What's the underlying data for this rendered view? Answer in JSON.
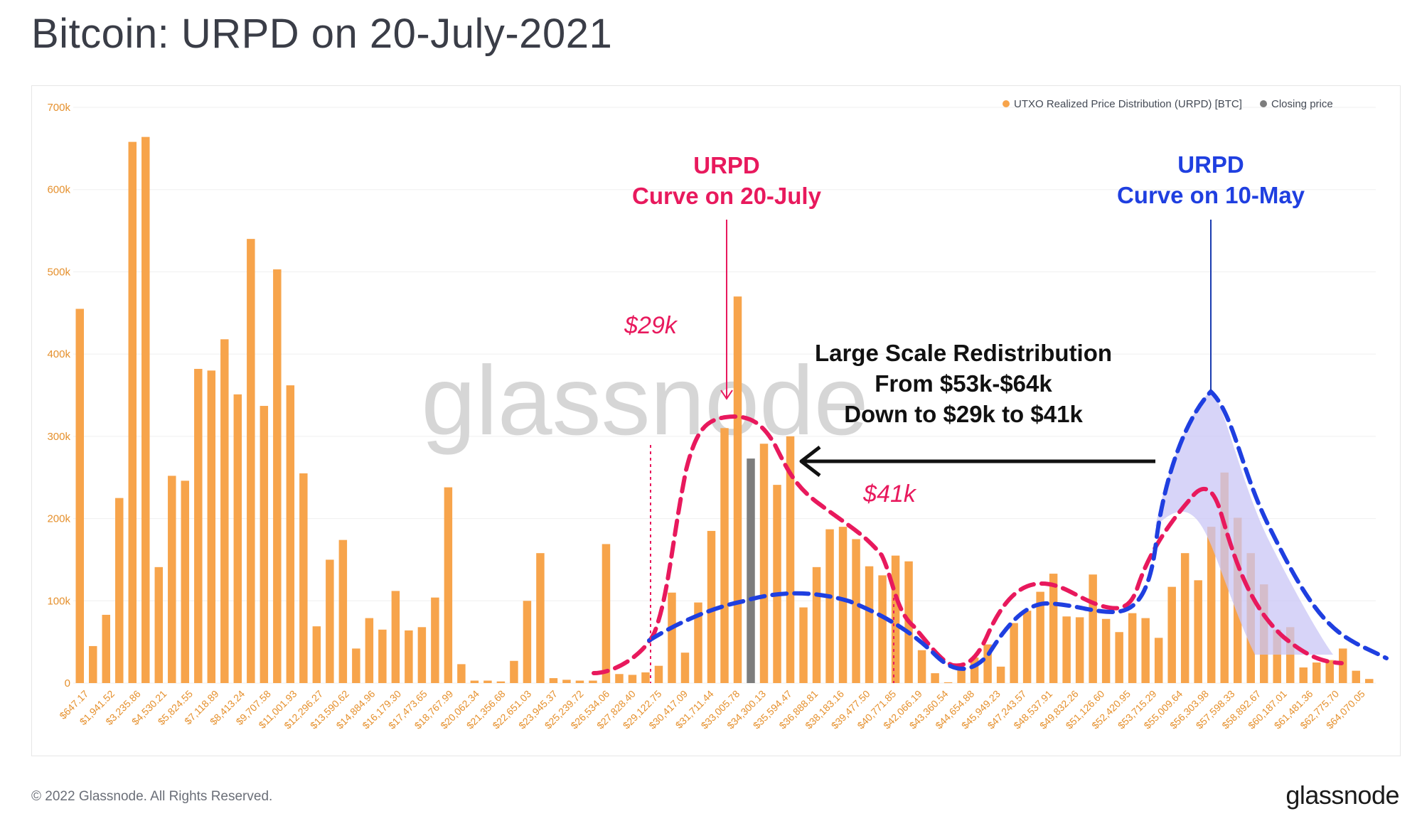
{
  "title": "Bitcoin: URPD on 20-July-2021",
  "footer": "© 2022 Glassnode. All Rights Reserved.",
  "brand": "glassnode",
  "watermark": "glassnode",
  "colors": {
    "bar": "#f7a44b",
    "closing": "#7d7d7d",
    "curve_july": "#e8195d",
    "curve_may": "#1f3fe0",
    "may_fill": "#c9c6f5",
    "tick": "#e5902d",
    "grid": "#efefef"
  },
  "legend": {
    "urpd": "UTXO Realized Price Distribution (URPD) [BTC]",
    "closing": "Closing price"
  },
  "annotations": {
    "july_line1": "URPD",
    "july_line2": "Curve on 20-July",
    "may_line1": "URPD",
    "may_line2": "Curve on 10-May",
    "low_marker": "$29k",
    "high_marker": "$41k",
    "redistribution_line1": "Large Scale Redistribution",
    "redistribution_line2": "From $53k-$64k",
    "redistribution_line3": "Down to $29k to $41k"
  },
  "chart_data": {
    "type": "bar",
    "title": "Bitcoin: URPD on 20-July-2021",
    "ylim": [
      0,
      700000
    ],
    "yticks": [
      "0",
      "100k",
      "200k",
      "300k",
      "400k",
      "500k",
      "600k",
      "700k"
    ],
    "grid": true,
    "legend_position": "top-right",
    "xtick_labels": [
      "$647.17",
      "$1,941.52",
      "$3,235.86",
      "$4,530.21",
      "$5,824.55",
      "$7,118.89",
      "$8,413.24",
      "$9,707.58",
      "$11,001.93",
      "$12,296.27",
      "$13,590.62",
      "$14,884.96",
      "$16,179.30",
      "$17,473.65",
      "$18,767.99",
      "$20,062.34",
      "$21,356.68",
      "$22,651.03",
      "$23,945.37",
      "$25,239.72",
      "$26,534.06",
      "$27,828.40",
      "$29,122.75",
      "$30,417.09",
      "$31,711.44",
      "$33,005.78",
      "$34,300.13",
      "$35,594.47",
      "$36,888.81",
      "$38,183.16",
      "$39,477.50",
      "$40,771.85",
      "$42,066.19",
      "$43,360.54",
      "$44,654.88",
      "$45,949.23",
      "$47,243.57",
      "$48,537.91",
      "$49,832.26",
      "$51,126.60",
      "$52,420.95",
      "$53,715.29",
      "$55,009.64",
      "$56,303.98",
      "$57,598.33",
      "$58,892.67",
      "$60,187.01",
      "$61,481.36",
      "$62,775.70",
      "$64,070.05"
    ],
    "series": [
      {
        "name": "UTXO Realized Price Distribution (URPD) [BTC]",
        "values": [
          455000,
          45000,
          83000,
          225000,
          658000,
          664000,
          141000,
          252000,
          246000,
          382000,
          380000,
          418000,
          351000,
          540000,
          337000,
          503000,
          362000,
          255000,
          69000,
          150000,
          174000,
          42000,
          79000,
          65000,
          112000,
          64000,
          68000,
          104000,
          238000,
          23000,
          3000,
          3000,
          2000,
          27000,
          100000,
          158000,
          6000,
          4000,
          3000,
          3000,
          169000,
          11000,
          10000,
          13000,
          21000,
          110000,
          37000,
          98000,
          185000,
          310000,
          470000,
          0,
          291000,
          241000,
          300000,
          92000,
          141000,
          187000,
          190000,
          175000,
          142000,
          131000,
          155000,
          148000,
          40000,
          12000,
          1000,
          18000,
          31000,
          47000,
          20000,
          73000,
          88000,
          111000,
          133000,
          81000,
          80000,
          132000,
          78000,
          62000,
          85000,
          79000,
          55000,
          117000,
          158000,
          125000,
          190000,
          256000,
          201000,
          158000,
          120000,
          65000,
          68000,
          19000,
          25000,
          28000,
          42000,
          15000,
          5000
        ]
      },
      {
        "name": "Closing price",
        "values": [
          0,
          0,
          0,
          0,
          0,
          0,
          0,
          0,
          0,
          0,
          0,
          0,
          0,
          0,
          0,
          0,
          0,
          0,
          0,
          0,
          0,
          0,
          0,
          0,
          0,
          0,
          0,
          0,
          0,
          0,
          0,
          0,
          0,
          0,
          0,
          0,
          0,
          0,
          0,
          0,
          0,
          0,
          0,
          0,
          0,
          0,
          0,
          0,
          0,
          0,
          0,
          273000,
          0,
          0,
          0,
          0,
          0,
          0,
          0,
          0,
          0,
          0,
          0,
          0,
          0,
          0,
          0,
          0,
          0,
          0,
          0,
          0,
          0,
          0,
          0,
          0,
          0,
          0,
          0,
          0,
          0,
          0,
          0,
          0,
          0,
          0,
          0,
          0,
          0,
          0,
          0,
          0,
          0,
          0,
          0,
          0,
          0,
          0,
          0
        ]
      }
    ]
  }
}
